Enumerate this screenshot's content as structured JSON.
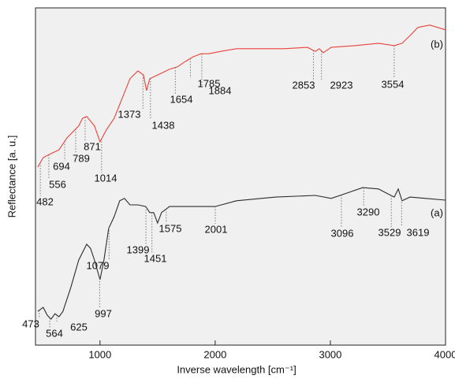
{
  "chart_data": {
    "type": "line",
    "x_label": "Inverse wavelength  [cm⁻¹]",
    "y_label": "Reflectance [a. u.]",
    "xlim": [
      440,
      4000
    ],
    "ylim": [
      0,
      100
    ],
    "xticks": [
      1000,
      2000,
      3000,
      4000
    ],
    "series": [
      {
        "name": "(a)",
        "color": "#2b2b2b",
        "x": [
          459,
          507,
          541,
          575,
          610,
          644,
          678,
          747,
          815,
          884,
          918,
          952,
          1000,
          1034,
          1075,
          1123,
          1171,
          1212,
          1260,
          1329,
          1397,
          1432,
          1466,
          1500,
          1534,
          1603,
          1774,
          2000,
          2185,
          2527,
          2870,
          3007,
          3144,
          3281,
          3418,
          3486,
          3555,
          3589,
          3623,
          3692,
          3829,
          4000
        ],
        "values": [
          10.0,
          11.2,
          8.9,
          7.7,
          9.3,
          8.4,
          10.0,
          17.1,
          25.2,
          29.9,
          28.7,
          25.2,
          19.4,
          25.2,
          34.6,
          38.1,
          42.8,
          43.5,
          41.6,
          41.6,
          41.1,
          39.3,
          39.3,
          36.2,
          39.3,
          41.1,
          41.1,
          41.1,
          42.8,
          43.9,
          44.4,
          43.5,
          45.1,
          46.7,
          46.3,
          45.1,
          43.9,
          46.3,
          42.8,
          43.9,
          43.5,
          43.0
        ],
        "peaks": [
          473,
          564,
          625,
          997,
          1079,
          1399,
          1451,
          1575,
          2001,
          3096,
          3290,
          3529,
          3619
        ]
      },
      {
        "name": "(b)",
        "color": "#e8423a",
        "x": [
          459,
          507,
          575,
          644,
          712,
          781,
          815,
          849,
          884,
          952,
          1000,
          1055,
          1123,
          1192,
          1260,
          1329,
          1377,
          1404,
          1432,
          1500,
          1603,
          1671,
          1740,
          1808,
          1877,
          1945,
          2048,
          2185,
          2390,
          2596,
          2801,
          2870,
          2904,
          2938,
          3007,
          3212,
          3418,
          3555,
          3623,
          3692,
          3760,
          3863,
          4000
        ],
        "values": [
          52.8,
          55.6,
          56.8,
          57.9,
          61.4,
          63.8,
          65.0,
          67.3,
          67.8,
          65.0,
          60.3,
          63.8,
          67.3,
          73.1,
          79.0,
          81.3,
          80.1,
          75.5,
          79.0,
          80.1,
          81.8,
          82.5,
          84.1,
          85.5,
          86.4,
          86.4,
          87.1,
          87.9,
          87.9,
          87.9,
          88.3,
          87.1,
          87.9,
          86.7,
          88.3,
          88.8,
          89.5,
          88.8,
          89.5,
          91.8,
          94.2,
          94.9,
          93.5
        ],
        "peaks": [
          482,
          556,
          694,
          789,
          871,
          1014,
          1373,
          1438,
          1654,
          1785,
          1884,
          2853,
          2923,
          3554
        ]
      }
    ]
  }
}
